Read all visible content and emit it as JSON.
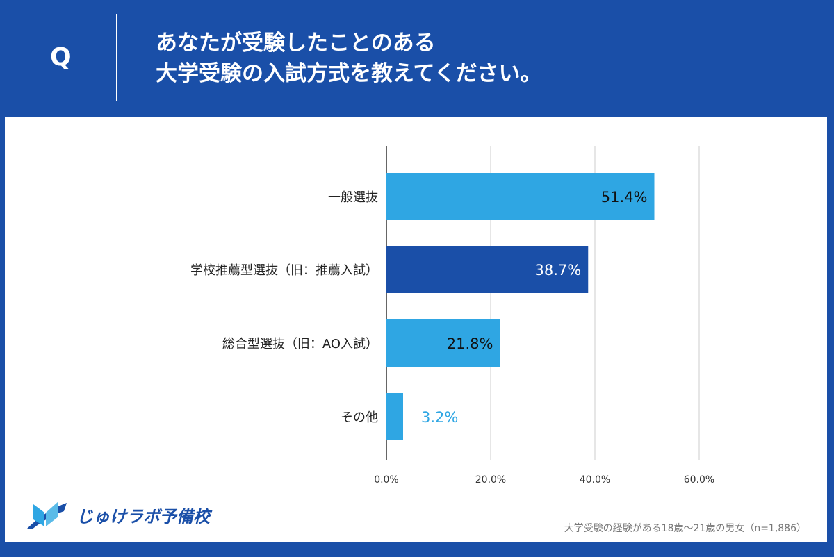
{
  "header": {
    "q_label": "Q",
    "title_line1": "あなたが受験したことのある",
    "title_line2": "大学受験の入試方式を教えてください。"
  },
  "colors": {
    "background": "#1a4fa8",
    "bar_light": "#2fa6e3",
    "bar_dark": "#1a4fa8"
  },
  "chart_data": {
    "type": "bar",
    "orientation": "horizontal",
    "categories": [
      "一般選抜",
      "学校推薦型選抜（旧：推薦入試）",
      "総合型選抜（旧：AO入試）",
      "その他"
    ],
    "values": [
      51.4,
      38.7,
      21.8,
      3.2
    ],
    "data_labels": [
      "51.4%",
      "38.7%",
      "21.8%",
      "3.2%"
    ],
    "xlim": [
      0,
      60
    ],
    "xticks": [
      "0.0%",
      "20.0%",
      "40.0%",
      "60.0%"
    ],
    "grid": true
  },
  "footer": {
    "logo_text": "じゅけラボ予備校",
    "note": "大学受験の経験がある18歳〜21歳の男女（n=1,886）"
  }
}
